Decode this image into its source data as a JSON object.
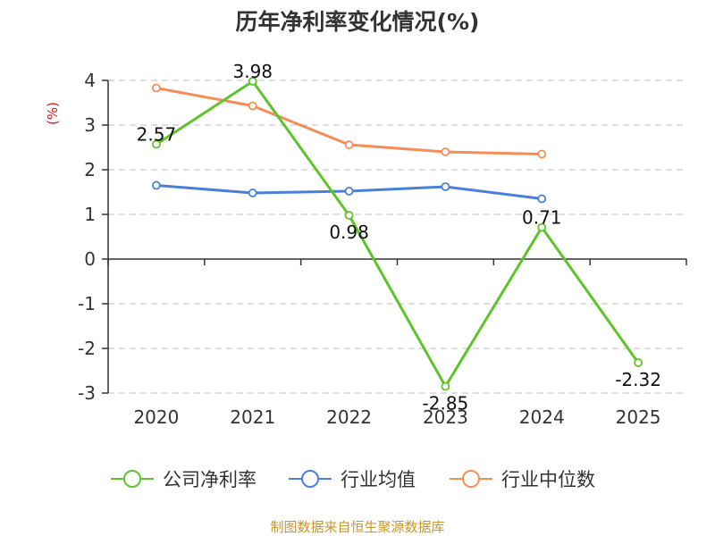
{
  "chart_data": {
    "type": "line",
    "title": "历年净利率变化情况(%)",
    "ylabel": "(%)",
    "xlabel": "",
    "categories": [
      "2020",
      "2021",
      "2022",
      "2023",
      "2024",
      "2025"
    ],
    "ylim": [
      -3,
      4
    ],
    "yticks": [
      4,
      3,
      2,
      1,
      0,
      -1,
      -2,
      -3
    ],
    "ytick_labels": [
      "4",
      "3",
      "2",
      "1",
      "0",
      "-1",
      "-2",
      "-3"
    ],
    "grid": true,
    "legend_position": "bottom",
    "series": [
      {
        "name": "公司净利率",
        "color": "#5ec42a",
        "values": [
          2.57,
          3.98,
          0.98,
          -2.85,
          0.71,
          -2.32
        ],
        "data_labels": [
          "2.57",
          "3.98",
          "0.98",
          "-2.85",
          "0.71",
          "-2.32"
        ]
      },
      {
        "name": "行业均值",
        "color": "#4a7fdc",
        "values": [
          1.65,
          1.48,
          1.52,
          1.62,
          1.35,
          null
        ]
      },
      {
        "name": "行业中位数",
        "color": "#f58d57",
        "values": [
          3.83,
          3.43,
          2.56,
          2.4,
          2.35,
          null
        ]
      }
    ],
    "source": "制图数据来自恒生聚源数据库"
  }
}
